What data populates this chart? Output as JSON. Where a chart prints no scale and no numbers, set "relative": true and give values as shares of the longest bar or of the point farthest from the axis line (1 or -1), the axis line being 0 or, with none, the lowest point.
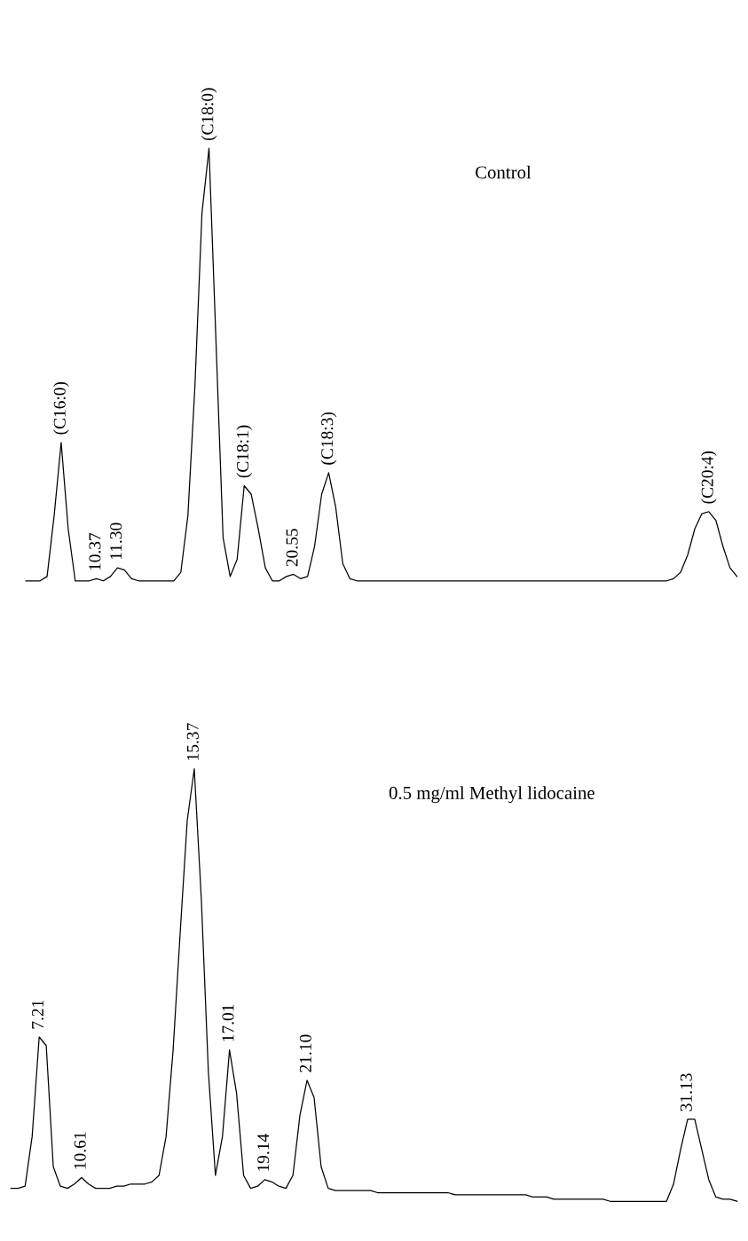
{
  "chart_data": [
    {
      "type": "line",
      "relative": true,
      "tick_labels": false,
      "title": "Control",
      "annotations": [
        "(C16:0)",
        "10.37",
        "11.30",
        "(C18:0)",
        "(C18:1)",
        "20.55",
        "(C18:3)",
        "(C20:4)"
      ],
      "categories": [
        null,
        null,
        null,
        null,
        null,
        null,
        null,
        null,
        null,
        null,
        null,
        null,
        null,
        null,
        null,
        null,
        null,
        null,
        null,
        null,
        null,
        null,
        null,
        null,
        null,
        null,
        null,
        null,
        null,
        null,
        null,
        null,
        null,
        null,
        null,
        null,
        null,
        null,
        null,
        null,
        null,
        null,
        null,
        null,
        null,
        null,
        null,
        null,
        null,
        null,
        null,
        null,
        null,
        null,
        null,
        null,
        null,
        null,
        null,
        null,
        null,
        null,
        null,
        null,
        null,
        null,
        null,
        null,
        null,
        null,
        null,
        null,
        null,
        null,
        null,
        null,
        null,
        null,
        null,
        null,
        null,
        null,
        null,
        null,
        null,
        null,
        null,
        null,
        null,
        null,
        null,
        null,
        null,
        null,
        null,
        null,
        null,
        null,
        null,
        null,
        null,
        null
      ],
      "series": [
        {
          "color": "#000000",
          "values": [
            0,
            0,
            0,
            0.01,
            0.15,
            0.32,
            0.12,
            0,
            0,
            0,
            0.005,
            0,
            0.01,
            0.03,
            0.025,
            0.005,
            0,
            0,
            0,
            0,
            0,
            0,
            0.02,
            0.15,
            0.45,
            0.85,
            1,
            0.55,
            0.1,
            0.01,
            0.05,
            0.22,
            0.2,
            0.12,
            0.03,
            0,
            0,
            0.01,
            0.015,
            0.005,
            0.01,
            0.08,
            0.2,
            0.25,
            0.17,
            0.04,
            0.005,
            0,
            0,
            0,
            0,
            0,
            0,
            0,
            0,
            0,
            0,
            0,
            0,
            0,
            0,
            0,
            0,
            0,
            0,
            0,
            0,
            0,
            0,
            0,
            0,
            0,
            0,
            0,
            0,
            0,
            0,
            0,
            0,
            0,
            0,
            0,
            0,
            0,
            0,
            0,
            0,
            0,
            0,
            0,
            0,
            0,
            0.005,
            0.02,
            0.06,
            0.12,
            0.155,
            0.16,
            0.14,
            0.08,
            0.03,
            0.01
          ]
        }
      ]
    },
    {
      "type": "line",
      "relative": true,
      "tick_labels": false,
      "title": "0.5 mg/ml Methyl lidocaine",
      "annotations": [
        "7.21",
        "10.61",
        "15.37",
        "17.01",
        "19.14",
        "21.10",
        "31.13"
      ],
      "categories": [
        null,
        null,
        null,
        null,
        null,
        null,
        null,
        null,
        null,
        null,
        null,
        null,
        null,
        null,
        null,
        null,
        null,
        null,
        null,
        null,
        null,
        null,
        null,
        null,
        null,
        null,
        null,
        null,
        null,
        null,
        null,
        null,
        null,
        null,
        null,
        null,
        null,
        null,
        null,
        null,
        null,
        null,
        null,
        null,
        null,
        null,
        null,
        null,
        null,
        null,
        null,
        null,
        null,
        null,
        null,
        null,
        null,
        null,
        null,
        null,
        null,
        null,
        null,
        null,
        null,
        null,
        null,
        null,
        null,
        null,
        null,
        null,
        null,
        null,
        null,
        null,
        null,
        null,
        null,
        null,
        null,
        null,
        null,
        null,
        null,
        null,
        null,
        null,
        null,
        null,
        null,
        null,
        null,
        null,
        null,
        null,
        null,
        null,
        null,
        null,
        null,
        null,
        null,
        null
      ],
      "series": [
        {
          "color": "#000000",
          "values": [
            0.03,
            0.03,
            0.035,
            0.15,
            0.38,
            0.36,
            0.08,
            0.035,
            0.03,
            0.04,
            0.055,
            0.04,
            0.03,
            0.03,
            0.03,
            0.035,
            0.035,
            0.04,
            0.04,
            0.04,
            0.045,
            0.06,
            0.15,
            0.35,
            0.62,
            0.88,
            1,
            0.7,
            0.3,
            0.06,
            0.15,
            0.35,
            0.25,
            0.06,
            0.03,
            0.035,
            0.05,
            0.045,
            0.035,
            0.03,
            0.06,
            0.2,
            0.28,
            0.24,
            0.08,
            0.03,
            0.025,
            0.025,
            0.025,
            0.025,
            0.025,
            0.025,
            0.02,
            0.02,
            0.02,
            0.02,
            0.02,
            0.02,
            0.02,
            0.02,
            0.02,
            0.02,
            0.02,
            0.015,
            0.015,
            0.015,
            0.015,
            0.015,
            0.015,
            0.015,
            0.015,
            0.015,
            0.015,
            0.015,
            0.01,
            0.01,
            0.01,
            0.005,
            0.005,
            0.005,
            0.005,
            0.005,
            0.005,
            0.005,
            0.005,
            0,
            0,
            0,
            0,
            0,
            0,
            0,
            0,
            0,
            0.04,
            0.12,
            0.19,
            0.19,
            0.12,
            0.05,
            0.01,
            0.005,
            0.005,
            0
          ]
        }
      ]
    }
  ]
}
